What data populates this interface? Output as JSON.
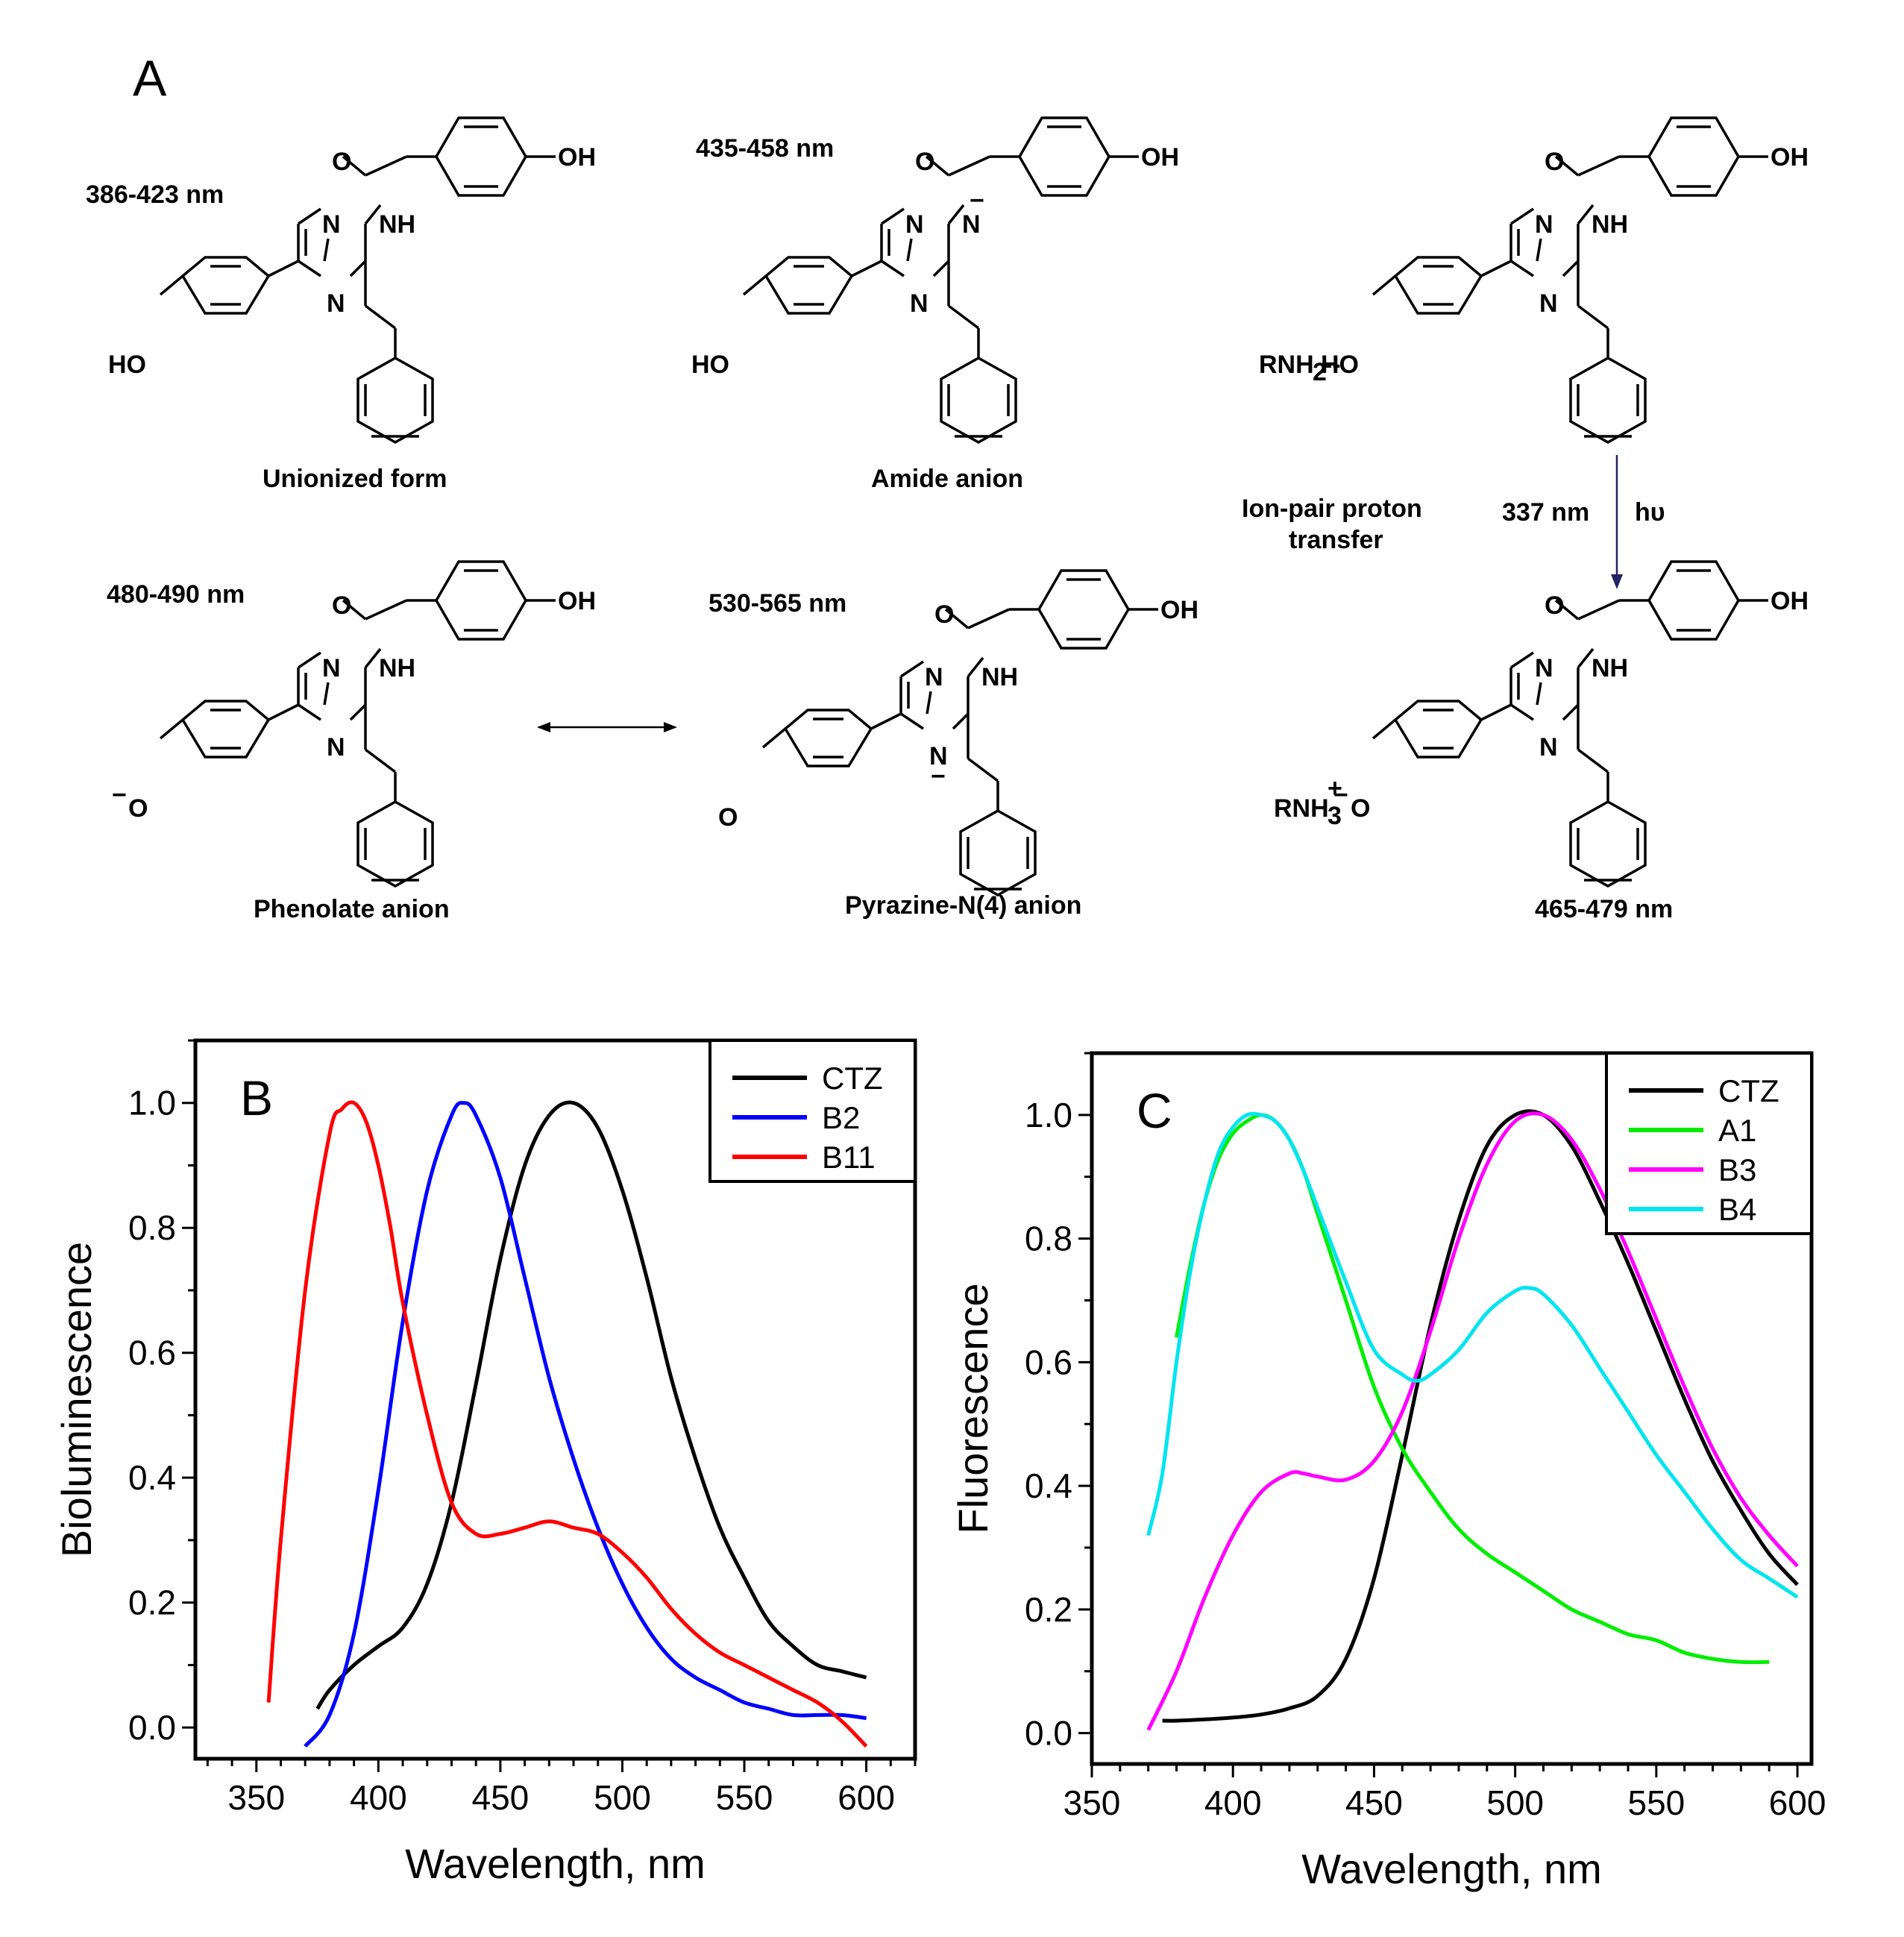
{
  "panel_a": {
    "letter": "A",
    "unionized": {
      "wavelength": "386-423 nm",
      "name": "Unionized form"
    },
    "amide": {
      "wavelength": "435-458 nm",
      "name": "Amide anion"
    },
    "ion_pair": {
      "name_line1": "Ion-pair proton",
      "name_line2": "transfer",
      "wavelength": "337 nm",
      "light": "hυ",
      "amine_donor": "RNH",
      "amine_sub": "2",
      "emission": "465-479 nm",
      "amine_cation": "RNH",
      "amine_cation_sub": "3",
      "plus": "+"
    },
    "phenolate": {
      "wavelength": "480-490 nm",
      "name": "Phenolate anion"
    },
    "pyrazine": {
      "wavelength": "530-565 nm",
      "name": "Pyrazine-N(4) anion"
    },
    "atoms": {
      "O": "O",
      "OH": "OH",
      "NH": "NH",
      "N": "N",
      "HO": "HO",
      "minus": "−"
    }
  },
  "chart_data": [
    {
      "panel": "B",
      "type": "line",
      "xlabel": "Wavelength, nm",
      "ylabel": "Bioluminescence",
      "xlim": [
        325,
        620
      ],
      "ylim": [
        -0.05,
        1.1
      ],
      "xticks": [
        350,
        400,
        450,
        500,
        550,
        600
      ],
      "yticks": [
        0.0,
        0.2,
        0.4,
        0.6,
        0.8,
        1.0
      ],
      "legend_position": "top-right",
      "series": [
        {
          "name": "CTZ",
          "color": "#000000",
          "x": [
            375,
            380,
            390,
            400,
            410,
            420,
            430,
            440,
            450,
            460,
            470,
            480,
            490,
            500,
            510,
            520,
            530,
            540,
            550,
            560,
            570,
            580,
            590,
            600
          ],
          "y": [
            0.03,
            0.06,
            0.1,
            0.13,
            0.16,
            0.23,
            0.36,
            0.55,
            0.75,
            0.9,
            0.98,
            1.0,
            0.96,
            0.86,
            0.72,
            0.56,
            0.43,
            0.32,
            0.24,
            0.17,
            0.13,
            0.1,
            0.09,
            0.08
          ]
        },
        {
          "name": "B2",
          "color": "#0000ff",
          "x": [
            370,
            380,
            390,
            400,
            410,
            420,
            430,
            435,
            440,
            450,
            460,
            470,
            480,
            490,
            500,
            510,
            520,
            530,
            540,
            550,
            560,
            570,
            580,
            590,
            600
          ],
          "y": [
            -0.03,
            0.02,
            0.15,
            0.38,
            0.65,
            0.86,
            0.98,
            1.0,
            0.98,
            0.88,
            0.72,
            0.56,
            0.43,
            0.32,
            0.23,
            0.16,
            0.11,
            0.08,
            0.06,
            0.04,
            0.03,
            0.02,
            0.02,
            0.02,
            0.015
          ]
        },
        {
          "name": "B11",
          "color": "#ff0000",
          "x": [
            355,
            360,
            370,
            380,
            385,
            390,
            395,
            400,
            405,
            410,
            420,
            430,
            440,
            450,
            460,
            470,
            480,
            490,
            500,
            510,
            520,
            530,
            540,
            550,
            560,
            570,
            580,
            590,
            600
          ],
          "y": [
            0.04,
            0.3,
            0.7,
            0.95,
            0.99,
            1.0,
            0.97,
            0.9,
            0.8,
            0.68,
            0.5,
            0.36,
            0.31,
            0.31,
            0.32,
            0.33,
            0.32,
            0.31,
            0.28,
            0.24,
            0.19,
            0.15,
            0.12,
            0.1,
            0.08,
            0.06,
            0.04,
            0.01,
            -0.03
          ]
        }
      ]
    },
    {
      "panel": "C",
      "type": "line",
      "xlabel": "Wavelength, nm",
      "ylabel": "Fluorescence",
      "xlim": [
        350,
        605
      ],
      "ylim": [
        -0.05,
        1.1
      ],
      "xticks": [
        350,
        400,
        450,
        500,
        550,
        600
      ],
      "yticks": [
        0.0,
        0.2,
        0.4,
        0.6,
        0.8,
        1.0
      ],
      "legend_position": "top-right",
      "series": [
        {
          "name": "CTZ",
          "color": "#000000",
          "x": [
            375,
            380,
            390,
            400,
            410,
            420,
            430,
            440,
            450,
            460,
            470,
            480,
            490,
            500,
            510,
            520,
            530,
            540,
            550,
            560,
            570,
            580,
            590,
            600
          ],
          "y": [
            0.02,
            0.02,
            0.022,
            0.025,
            0.03,
            0.04,
            0.06,
            0.12,
            0.25,
            0.45,
            0.66,
            0.83,
            0.95,
            1.0,
            1.0,
            0.95,
            0.86,
            0.76,
            0.65,
            0.54,
            0.44,
            0.36,
            0.29,
            0.24
          ]
        },
        {
          "name": "A1",
          "color": "#00ee00",
          "x": [
            380,
            385,
            390,
            395,
            400,
            405,
            410,
            415,
            420,
            425,
            430,
            440,
            450,
            460,
            470,
            480,
            490,
            500,
            510,
            520,
            530,
            540,
            550,
            560,
            570,
            580,
            590
          ],
          "y": [
            0.64,
            0.76,
            0.86,
            0.93,
            0.97,
            0.99,
            1.0,
            0.99,
            0.96,
            0.91,
            0.84,
            0.7,
            0.56,
            0.46,
            0.39,
            0.33,
            0.29,
            0.26,
            0.23,
            0.2,
            0.18,
            0.16,
            0.15,
            0.13,
            0.12,
            0.115,
            0.115
          ]
        },
        {
          "name": "B3",
          "color": "#ff00ff",
          "x": [
            370,
            380,
            390,
            400,
            410,
            420,
            425,
            430,
            440,
            450,
            460,
            470,
            480,
            490,
            500,
            510,
            520,
            530,
            540,
            550,
            560,
            570,
            580,
            590,
            600
          ],
          "y": [
            0.005,
            0.1,
            0.22,
            0.32,
            0.39,
            0.42,
            0.42,
            0.415,
            0.41,
            0.44,
            0.52,
            0.65,
            0.8,
            0.92,
            0.99,
            1.0,
            0.96,
            0.88,
            0.78,
            0.67,
            0.56,
            0.46,
            0.38,
            0.32,
            0.27
          ]
        },
        {
          "name": "B4",
          "color": "#00e5ee",
          "x": [
            370,
            375,
            380,
            385,
            390,
            395,
            400,
            405,
            410,
            415,
            420,
            425,
            430,
            440,
            450,
            460,
            465,
            470,
            480,
            490,
            500,
            505,
            510,
            520,
            530,
            540,
            550,
            560,
            570,
            580,
            590,
            600
          ],
          "y": [
            0.32,
            0.42,
            0.6,
            0.75,
            0.86,
            0.94,
            0.98,
            1.0,
            1.0,
            0.99,
            0.96,
            0.91,
            0.85,
            0.73,
            0.62,
            0.58,
            0.57,
            0.58,
            0.62,
            0.68,
            0.715,
            0.72,
            0.71,
            0.66,
            0.59,
            0.52,
            0.45,
            0.39,
            0.33,
            0.28,
            0.25,
            0.22
          ]
        }
      ]
    }
  ]
}
